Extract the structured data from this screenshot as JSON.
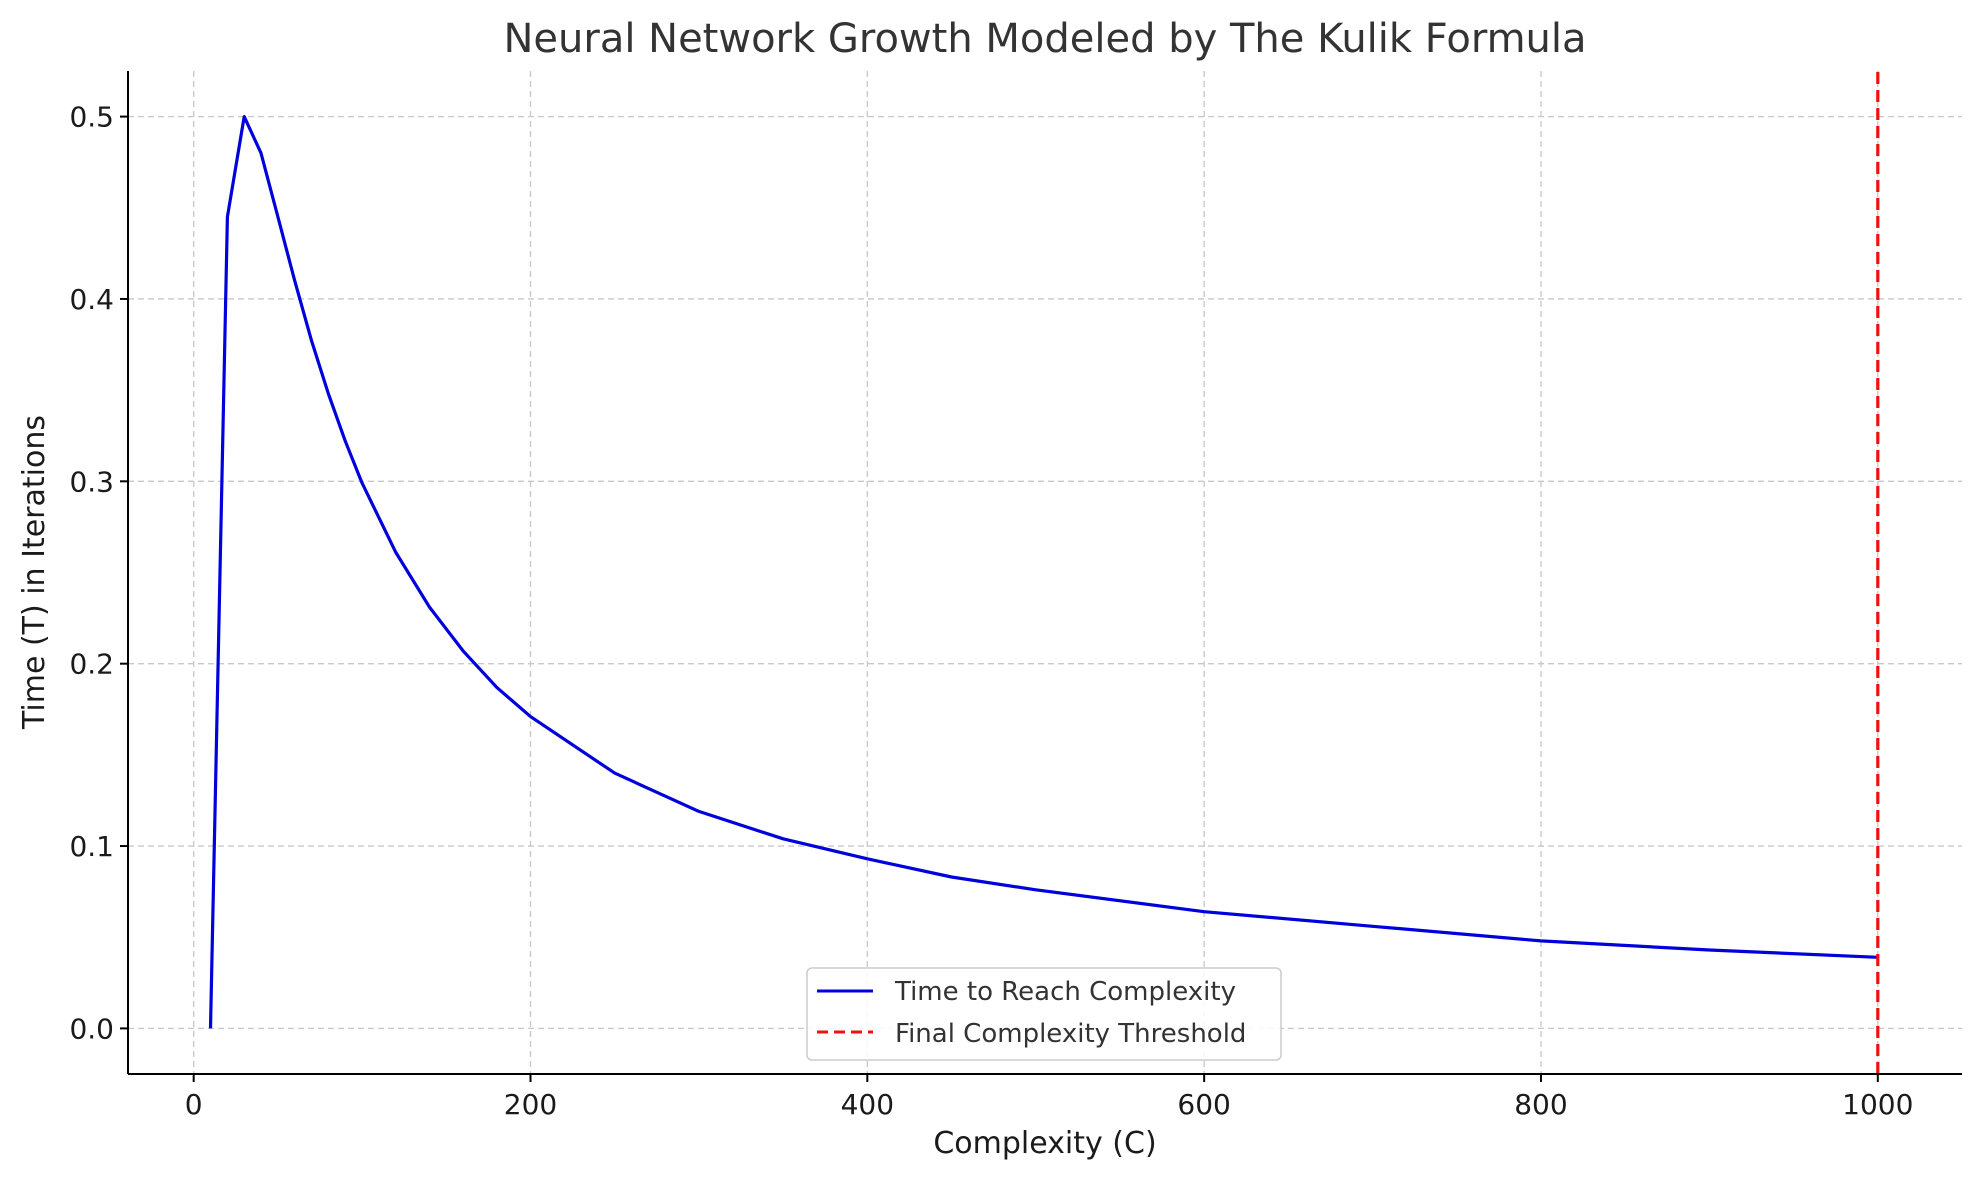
{
  "chart_data": {
    "type": "line",
    "title": "Neural Network Growth Modeled by The Kulik Formula",
    "xlabel": "Complexity (C)",
    "ylabel": "Time (T) in Iterations",
    "xlim": [
      -39,
      1050
    ],
    "ylim": [
      -0.025,
      0.525
    ],
    "xticks": [
      0,
      200,
      400,
      600,
      800,
      1000
    ],
    "yticks": [
      0.0,
      0.1,
      0.2,
      0.3,
      0.4,
      0.5
    ],
    "xtick_labels": [
      "0",
      "200",
      "400",
      "600",
      "800",
      "1000"
    ],
    "ytick_labels": [
      "0.0",
      "0.1",
      "0.2",
      "0.3",
      "0.4",
      "0.5"
    ],
    "grid": true,
    "legend_position": "bottom-center",
    "series": [
      {
        "name": "Time to Reach Complexity",
        "style": "solid",
        "color": "#0000dd",
        "x": [
          10,
          20,
          30,
          40,
          50,
          60,
          70,
          80,
          90,
          100,
          120,
          140,
          160,
          180,
          200,
          250,
          300,
          350,
          400,
          450,
          500,
          600,
          700,
          800,
          900,
          1000
        ],
        "y": [
          0.0,
          0.445,
          0.5,
          0.48,
          0.445,
          0.41,
          0.377,
          0.348,
          0.322,
          0.299,
          0.261,
          0.231,
          0.207,
          0.187,
          0.171,
          0.14,
          0.119,
          0.104,
          0.093,
          0.083,
          0.076,
          0.064,
          0.056,
          0.048,
          0.043,
          0.039
        ]
      },
      {
        "name": "Final Complexity Threshold",
        "style": "dashed",
        "color": "#ee1111",
        "x": [
          1000,
          1000
        ],
        "y": [
          -0.025,
          0.525
        ]
      }
    ]
  }
}
